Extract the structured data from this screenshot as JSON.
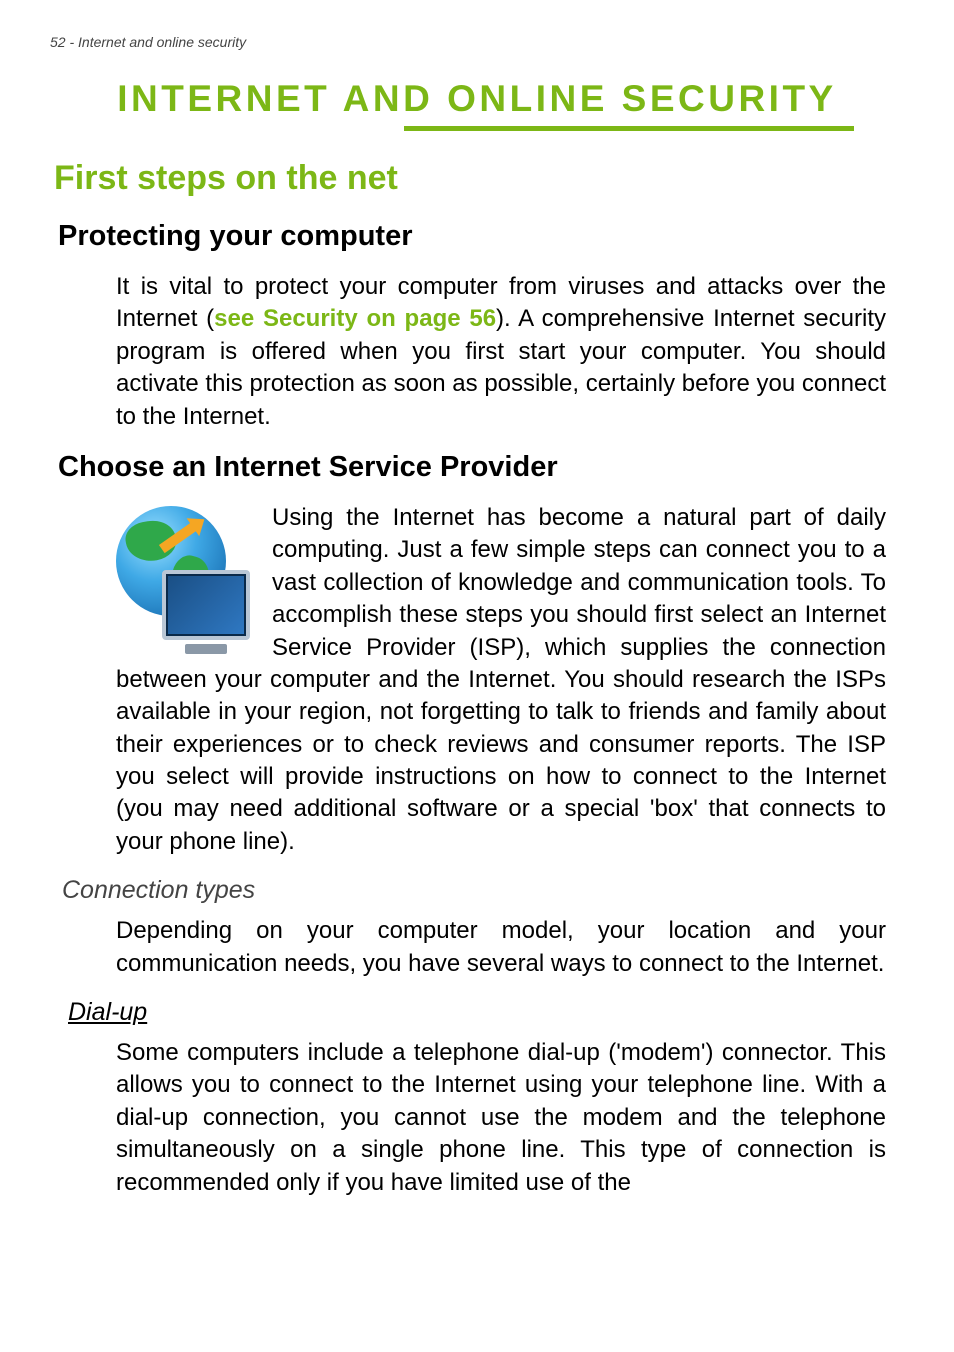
{
  "page": {
    "header": "52 - Internet and online security",
    "main_title": "INTERNET AND ONLINE SECURITY",
    "colors": {
      "accent_green": "#7cb716",
      "text_black": "#000000",
      "text_grey": "#444444",
      "background": "#ffffff"
    },
    "typography": {
      "title_fontsize": 37,
      "h1_fontsize": 34,
      "h2_fontsize": 29,
      "h3_fontsize": 25,
      "body_fontsize": 24
    }
  },
  "sections": {
    "first_steps": {
      "heading": "First steps on the net"
    },
    "protecting": {
      "heading": "Protecting your computer",
      "para1_a": "It is vital to protect your computer from viruses and attacks over the Internet (",
      "link": "see Security on page 56",
      "para1_b": "). A comprehensive Internet security program is offered when you first start your computer. You should activate this protection as soon as possible, certainly before you connect to the Internet."
    },
    "isp": {
      "heading": "Choose an Internet Service Provider",
      "para_a": "Using the Internet has become a natural part of daily computing. Just a few simple steps can connect you to a vast collection of knowledge and communication tools. To accomplish these steps you should first select an ",
      "isp_em": "Internet Service Provider",
      "para_b": " (ISP), which supplies the connection between your computer and the Internet. You should research the ISPs available in your region, not forgetting to talk to friends and family about their experiences or to check reviews and consumer reports. The ISP you select will provide instructions on how to connect to the Internet (you may need additional software or a special 'box' that connects to your phone line)."
    },
    "connection_types": {
      "heading": "Connection types",
      "para": "Depending on your computer model, your location and your communication needs, you have several ways to connect to the Internet."
    },
    "dialup": {
      "heading": "Dial-up",
      "para": "Some computers include a telephone dial-up ('modem') connector. This allows you to connect to the Internet using your telephone line. With a dial-up connection, you cannot use the modem and the telephone simultaneously on a single phone line. This type of connection is recommended only if you have limited use of the"
    }
  }
}
